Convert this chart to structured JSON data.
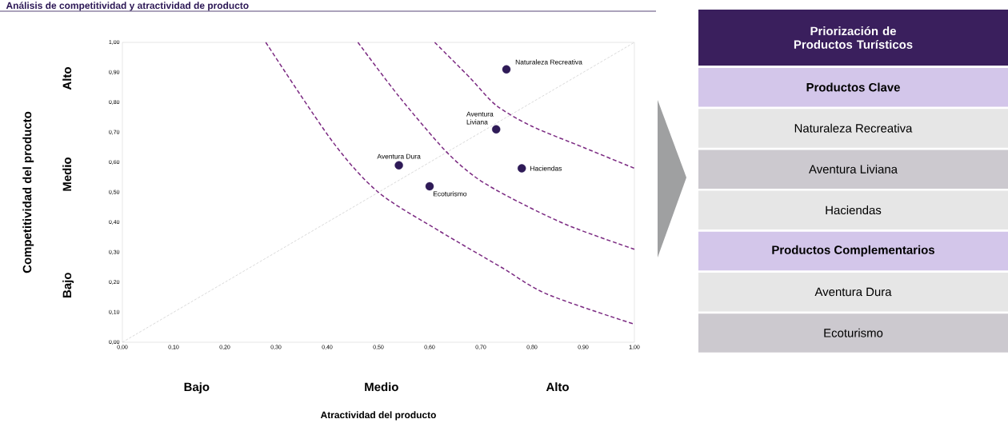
{
  "chart_data": [
    {
      "type": "scatter",
      "title": "Análisis de competitividad y atractividad de producto",
      "xlabel": "Atractividad del producto",
      "ylabel": "Competitividad del producto",
      "annotations": [
        "Bajo",
        "Medio",
        "Alto",
        "Bajo",
        "Medio",
        "Alto"
      ],
      "xlim": [
        0,
        1
      ],
      "ylim": [
        0,
        1
      ],
      "xticks": [
        {
          "value": 0,
          "label": "0,00"
        },
        {
          "value": 0.1,
          "label": "0,10"
        },
        {
          "value": 0.2,
          "label": "0,20"
        },
        {
          "value": 0.3,
          "label": "0,30"
        },
        {
          "value": 0.4,
          "label": "0,40"
        },
        {
          "value": 0.5,
          "label": "0,50"
        },
        {
          "value": 0.6,
          "label": "0,60"
        },
        {
          "value": 0.7,
          "label": "0,70"
        },
        {
          "value": 0.8,
          "label": "0,80"
        },
        {
          "value": 0.9,
          "label": "0,90"
        },
        {
          "value": 1,
          "label": "1,00"
        }
      ],
      "yticks": [
        {
          "value": 0,
          "label": "0,00"
        },
        {
          "value": 0.1,
          "label": "0,10"
        },
        {
          "value": 0.2,
          "label": "0,20"
        },
        {
          "value": 0.3,
          "label": "0,30"
        },
        {
          "value": 0.4,
          "label": "0,40"
        },
        {
          "value": 0.5,
          "label": "0,50"
        },
        {
          "value": 0.6,
          "label": "0,60"
        },
        {
          "value": 0.7,
          "label": "0,70"
        },
        {
          "value": 0.8,
          "label": "0,80"
        },
        {
          "value": 0.9,
          "label": "0,90"
        },
        {
          "value": 1,
          "label": "1,00"
        }
      ],
      "grid": false,
      "marker": "circle",
      "series": [
        {
          "type": "line",
          "marker": "none",
          "line_style": "dotted",
          "color": "#c8c8c8",
          "x": [
            0,
            1
          ],
          "values": [
            0,
            1
          ]
        },
        {
          "type": "line",
          "line_style": "dashed",
          "color": "#7b2a82",
          "marker": "none",
          "x": [
            0.28,
            0.41,
            0.5,
            0.62,
            0.74,
            0.83,
            1.0
          ],
          "values": [
            1.0,
            0.67,
            0.5,
            0.37,
            0.25,
            0.16,
            0.06
          ]
        },
        {
          "type": "line",
          "line_style": "dashed",
          "color": "#7b2a82",
          "marker": "none",
          "x": [
            0.46,
            0.54,
            0.63,
            0.69,
            0.76,
            0.87,
            1.0
          ],
          "values": [
            1.0,
            0.82,
            0.64,
            0.55,
            0.48,
            0.39,
            0.31
          ]
        },
        {
          "type": "line",
          "line_style": "dashed",
          "color": "#7b2a82",
          "marker": "none",
          "x": [
            0.61,
            0.68,
            0.73,
            0.8,
            0.9,
            1.0
          ],
          "values": [
            1.0,
            0.88,
            0.79,
            0.72,
            0.65,
            0.58
          ]
        },
        {
          "type": "scatter",
          "name": "Naturaleza Recreativa",
          "color": "#2e1a57",
          "x": [
            0.75
          ],
          "values": [
            0.91
          ]
        },
        {
          "type": "scatter",
          "name": "Aventura Liviana",
          "color": "#2e1a57",
          "x": [
            0.73
          ],
          "values": [
            0.71
          ]
        },
        {
          "type": "scatter",
          "name": "Haciendas",
          "color": "#2e1a57",
          "x": [
            0.78
          ],
          "values": [
            0.58
          ]
        },
        {
          "type": "scatter",
          "name": "Aventura Dura",
          "color": "#2e1a57",
          "x": [
            0.54
          ],
          "values": [
            0.59
          ]
        },
        {
          "type": "scatter",
          "name": "Ecoturismo",
          "color": "#2e1a57",
          "x": [
            0.6
          ],
          "values": [
            0.52
          ]
        }
      ]
    },
    {
      "type": "other",
      "title": "Priorización de Productos Turísticos",
      "annotations": [
        "Productos Clave",
        "Naturaleza Recreativa",
        "Aventura Liviana",
        "Haciendas",
        "Productos Complementarios",
        "Aventura Dura",
        "Ecoturismo"
      ]
    }
  ]
}
